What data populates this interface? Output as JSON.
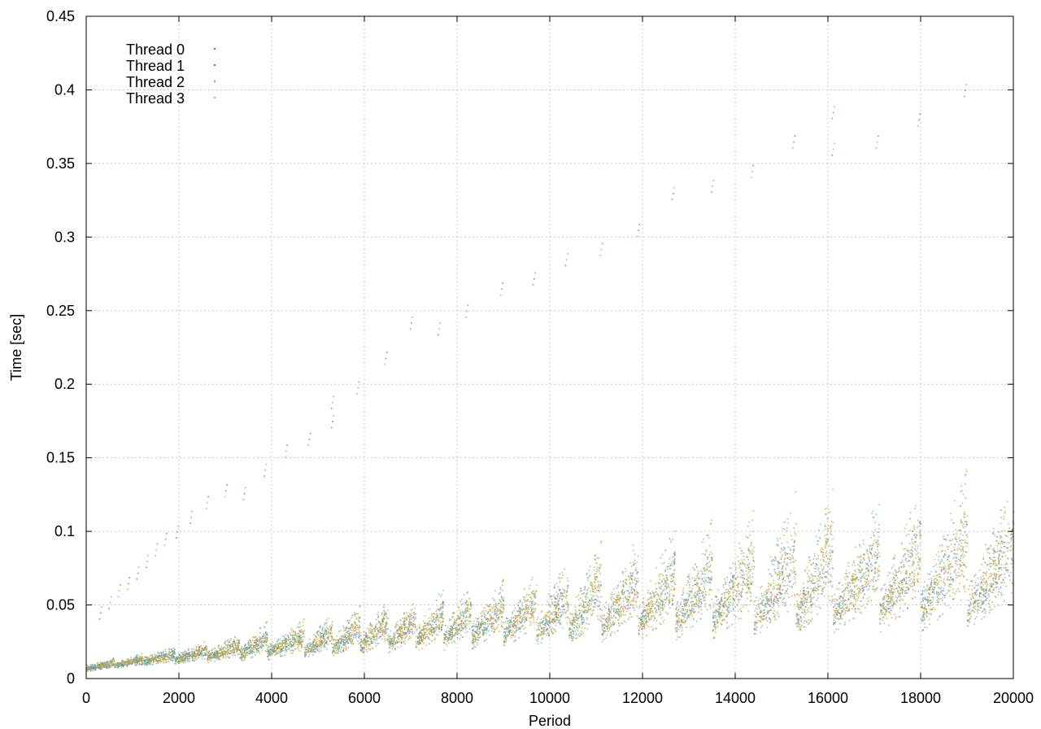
{
  "chart_data": {
    "type": "scatter",
    "title": "",
    "xlabel": "Period",
    "ylabel": "Time [sec]",
    "xlim": [
      0,
      20000
    ],
    "ylim": [
      0,
      0.45
    ],
    "x_ticks": [
      0,
      2000,
      4000,
      6000,
      8000,
      10000,
      12000,
      14000,
      16000,
      18000,
      20000
    ],
    "x_tick_labels": [
      "0",
      "2000",
      "4000",
      "6000",
      "8000",
      "10000",
      "12000",
      "14000",
      "16000",
      "18000",
      "20000"
    ],
    "y_ticks": [
      0,
      0.05,
      0.1,
      0.15,
      0.2,
      0.25,
      0.3,
      0.35,
      0.4,
      0.45
    ],
    "y_tick_labels": [
      "0",
      "0.05",
      "0.1",
      "0.15",
      "0.2",
      "0.25",
      "0.3",
      "0.35",
      "0.4",
      "0.45"
    ],
    "grid": true,
    "legend_position": "top-left",
    "series": [
      {
        "name": "Thread 0",
        "color": "#9b59d0",
        "marker": "dot"
      },
      {
        "name": "Thread 1",
        "color": "#2a9d5c",
        "marker": "plus"
      },
      {
        "name": "Thread 2",
        "color": "#5ab4d6",
        "marker": "cross"
      },
      {
        "name": "Thread 3",
        "color": "#d4a020",
        "marker": "star"
      }
    ],
    "band_segments": [
      {
        "x_start": 0,
        "x_end": 600,
        "y_low_start": 0.005,
        "y_low_end": 0.008,
        "y_high_start": 0.009,
        "y_high_end": 0.014
      },
      {
        "x_start": 600,
        "x_end": 1200,
        "y_low_start": 0.007,
        "y_low_end": 0.01,
        "y_high_start": 0.011,
        "y_high_end": 0.017
      },
      {
        "x_start": 1200,
        "x_end": 1900,
        "y_low_start": 0.009,
        "y_low_end": 0.012,
        "y_high_start": 0.014,
        "y_high_end": 0.022
      },
      {
        "x_start": 1900,
        "x_end": 2600,
        "y_low_start": 0.01,
        "y_low_end": 0.014,
        "y_high_start": 0.016,
        "y_high_end": 0.025
      },
      {
        "x_start": 2600,
        "x_end": 3300,
        "y_low_start": 0.011,
        "y_low_end": 0.016,
        "y_high_start": 0.018,
        "y_high_end": 0.03
      },
      {
        "x_start": 3300,
        "x_end": 3900,
        "y_low_start": 0.012,
        "y_low_end": 0.018,
        "y_high_start": 0.02,
        "y_high_end": 0.038
      },
      {
        "x_start": 3900,
        "x_end": 4700,
        "y_low_start": 0.013,
        "y_low_end": 0.02,
        "y_high_start": 0.022,
        "y_high_end": 0.04
      },
      {
        "x_start": 4700,
        "x_end": 5300,
        "y_low_start": 0.014,
        "y_low_end": 0.022,
        "y_high_start": 0.024,
        "y_high_end": 0.044
      },
      {
        "x_start": 5300,
        "x_end": 5900,
        "y_low_start": 0.015,
        "y_low_end": 0.024,
        "y_high_start": 0.026,
        "y_high_end": 0.048
      },
      {
        "x_start": 5900,
        "x_end": 6500,
        "y_low_start": 0.016,
        "y_low_end": 0.026,
        "y_high_start": 0.028,
        "y_high_end": 0.052
      },
      {
        "x_start": 6500,
        "x_end": 7100,
        "y_low_start": 0.017,
        "y_low_end": 0.028,
        "y_high_start": 0.03,
        "y_high_end": 0.056
      },
      {
        "x_start": 7100,
        "x_end": 7700,
        "y_low_start": 0.018,
        "y_low_end": 0.03,
        "y_high_start": 0.032,
        "y_high_end": 0.06
      },
      {
        "x_start": 7700,
        "x_end": 8300,
        "y_low_start": 0.019,
        "y_low_end": 0.032,
        "y_high_start": 0.034,
        "y_high_end": 0.062
      },
      {
        "x_start": 8300,
        "x_end": 9000,
        "y_low_start": 0.02,
        "y_low_end": 0.034,
        "y_high_start": 0.036,
        "y_high_end": 0.066
      },
      {
        "x_start": 9000,
        "x_end": 9700,
        "y_low_start": 0.021,
        "y_low_end": 0.036,
        "y_high_start": 0.038,
        "y_high_end": 0.072
      },
      {
        "x_start": 9700,
        "x_end": 10400,
        "y_low_start": 0.022,
        "y_low_end": 0.038,
        "y_high_start": 0.04,
        "y_high_end": 0.08
      },
      {
        "x_start": 10400,
        "x_end": 11100,
        "y_low_start": 0.023,
        "y_low_end": 0.04,
        "y_high_start": 0.042,
        "y_high_end": 0.09
      },
      {
        "x_start": 11100,
        "x_end": 11900,
        "y_low_start": 0.024,
        "y_low_end": 0.042,
        "y_high_start": 0.044,
        "y_high_end": 0.094
      },
      {
        "x_start": 11900,
        "x_end": 12700,
        "y_low_start": 0.025,
        "y_low_end": 0.044,
        "y_high_start": 0.046,
        "y_high_end": 0.1
      },
      {
        "x_start": 12700,
        "x_end": 13500,
        "y_low_start": 0.026,
        "y_low_end": 0.046,
        "y_high_start": 0.048,
        "y_high_end": 0.105
      },
      {
        "x_start": 13500,
        "x_end": 14400,
        "y_low_start": 0.027,
        "y_low_end": 0.048,
        "y_high_start": 0.05,
        "y_high_end": 0.112
      },
      {
        "x_start": 14400,
        "x_end": 15300,
        "y_low_start": 0.028,
        "y_low_end": 0.05,
        "y_high_start": 0.052,
        "y_high_end": 0.122
      },
      {
        "x_start": 15300,
        "x_end": 16100,
        "y_low_start": 0.029,
        "y_low_end": 0.052,
        "y_high_start": 0.054,
        "y_high_end": 0.125
      },
      {
        "x_start": 16100,
        "x_end": 17100,
        "y_low_start": 0.03,
        "y_low_end": 0.053,
        "y_high_start": 0.055,
        "y_high_end": 0.118
      },
      {
        "x_start": 17100,
        "x_end": 18000,
        "y_low_start": 0.031,
        "y_low_end": 0.054,
        "y_high_start": 0.056,
        "y_high_end": 0.125
      },
      {
        "x_start": 18000,
        "x_end": 19000,
        "y_low_start": 0.032,
        "y_low_end": 0.056,
        "y_high_start": 0.058,
        "y_high_end": 0.138
      },
      {
        "x_start": 19000,
        "x_end": 20000,
        "y_low_start": 0.033,
        "y_low_end": 0.058,
        "y_high_start": 0.06,
        "y_high_end": 0.13
      }
    ],
    "outliers": [
      [
        300,
        0.045
      ],
      [
        500,
        0.052
      ],
      [
        700,
        0.06
      ],
      [
        900,
        0.065
      ],
      [
        1100,
        0.072
      ],
      [
        1300,
        0.08
      ],
      [
        1500,
        0.088
      ],
      [
        1700,
        0.095
      ],
      [
        1950,
        0.1
      ],
      [
        2250,
        0.11
      ],
      [
        2600,
        0.12
      ],
      [
        3000,
        0.128
      ],
      [
        3400,
        0.126
      ],
      [
        3850,
        0.142
      ],
      [
        4300,
        0.155
      ],
      [
        4800,
        0.163
      ],
      [
        5300,
        0.175
      ],
      [
        5300,
        0.188
      ],
      [
        5850,
        0.198
      ],
      [
        6450,
        0.218
      ],
      [
        7000,
        0.242
      ],
      [
        7600,
        0.238
      ],
      [
        8200,
        0.25
      ],
      [
        8950,
        0.265
      ],
      [
        9650,
        0.272
      ],
      [
        10350,
        0.285
      ],
      [
        11100,
        0.292
      ],
      [
        11900,
        0.305
      ],
      [
        12650,
        0.33
      ],
      [
        13500,
        0.335
      ],
      [
        14350,
        0.345
      ],
      [
        15250,
        0.365
      ],
      [
        16100,
        0.385
      ],
      [
        16100,
        0.36
      ],
      [
        17050,
        0.365
      ],
      [
        17950,
        0.38
      ],
      [
        18950,
        0.4
      ]
    ]
  }
}
